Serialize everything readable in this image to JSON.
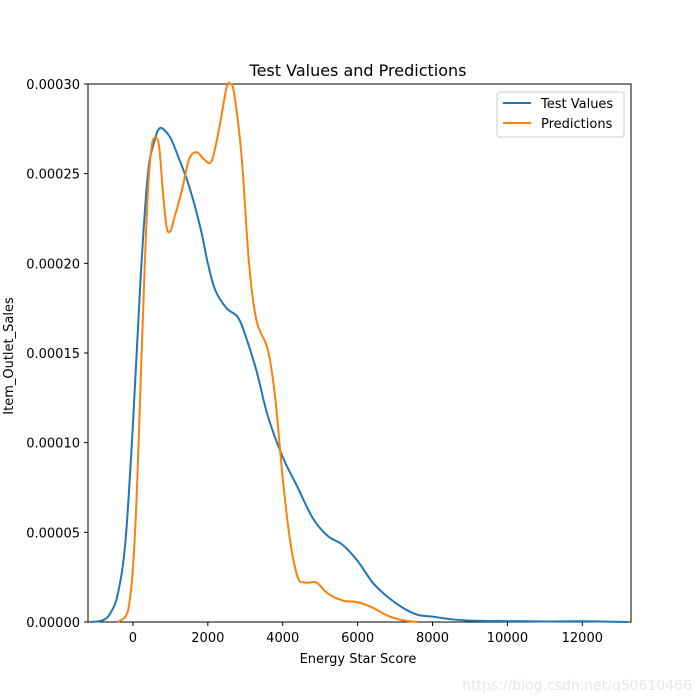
{
  "chart_data": {
    "type": "line",
    "title": "Test Values and Predictions",
    "xlabel": "Energy Star Score",
    "ylabel": "Item_Outlet_Sales",
    "xlim": [
      -1200,
      13300
    ],
    "ylim": [
      0,
      0.0003
    ],
    "xticks": [
      0,
      2000,
      4000,
      6000,
      8000,
      10000,
      12000
    ],
    "xtick_labels": [
      "0",
      "2000",
      "4000",
      "6000",
      "8000",
      "10000",
      "12000"
    ],
    "yticks": [
      0,
      5e-05,
      0.0001,
      0.00015,
      0.0002,
      0.00025,
      0.0003
    ],
    "ytick_labels": [
      "0.00000",
      "0.00005",
      "0.00010",
      "0.00015",
      "0.00020",
      "0.00025",
      "0.00030"
    ],
    "grid": false,
    "legend_position": "top-right",
    "series": [
      {
        "name": "Test Values",
        "color": "#1f77b4",
        "points": [
          [
            -1100,
            0.0
          ],
          [
            -800,
            1e-06
          ],
          [
            -600,
            5e-06
          ],
          [
            -400,
            1.6e-05
          ],
          [
            -200,
            4.5e-05
          ],
          [
            0,
            0.00011
          ],
          [
            200,
            0.00019
          ],
          [
            400,
            0.00025
          ],
          [
            600,
            0.00027
          ],
          [
            700,
            0.000275
          ],
          [
            800,
            0.000275
          ],
          [
            1000,
            0.00027
          ],
          [
            1200,
            0.00026
          ],
          [
            1500,
            0.000243
          ],
          [
            1800,
            0.00022
          ],
          [
            2000,
            0.0002
          ],
          [
            2200,
            0.000185
          ],
          [
            2500,
            0.000175
          ],
          [
            2800,
            0.00017
          ],
          [
            3000,
            0.00016
          ],
          [
            3300,
            0.00014
          ],
          [
            3600,
            0.000115
          ],
          [
            4000,
            9.2e-05
          ],
          [
            4400,
            7.5e-05
          ],
          [
            4800,
            5.8e-05
          ],
          [
            5200,
            4.8e-05
          ],
          [
            5600,
            4.3e-05
          ],
          [
            6000,
            3.4e-05
          ],
          [
            6400,
            2.2e-05
          ],
          [
            6800,
            1.4e-05
          ],
          [
            7200,
            8e-06
          ],
          [
            7600,
            4e-06
          ],
          [
            8000,
            3e-06
          ],
          [
            8500,
            1.5e-06
          ],
          [
            9000,
            8e-07
          ],
          [
            10000,
            5e-07
          ],
          [
            11000,
            3e-07
          ],
          [
            12000,
            4e-07
          ],
          [
            13200,
            0.0
          ]
        ]
      },
      {
        "name": "Predictions",
        "color": "#ff7f0e",
        "points": [
          [
            -400,
            0.0
          ],
          [
            -200,
            3e-06
          ],
          [
            -100,
            1e-05
          ],
          [
            0,
            3e-05
          ],
          [
            100,
            7e-05
          ],
          [
            200,
            0.00013
          ],
          [
            300,
            0.00019
          ],
          [
            400,
            0.00024
          ],
          [
            500,
            0.000265
          ],
          [
            600,
            0.00027
          ],
          [
            700,
            0.000265
          ],
          [
            800,
            0.00024
          ],
          [
            900,
            0.00022
          ],
          [
            1000,
            0.000218
          ],
          [
            1100,
            0.000225
          ],
          [
            1300,
            0.00024
          ],
          [
            1500,
            0.000258
          ],
          [
            1700,
            0.000262
          ],
          [
            1900,
            0.000258
          ],
          [
            2100,
            0.000257
          ],
          [
            2300,
            0.000275
          ],
          [
            2500,
            0.000298
          ],
          [
            2600,
            0.0003
          ],
          [
            2700,
            0.000295
          ],
          [
            2900,
            0.00026
          ],
          [
            3100,
            0.0002
          ],
          [
            3300,
            0.000168
          ],
          [
            3600,
            0.000152
          ],
          [
            3800,
            0.000125
          ],
          [
            4000,
            8e-05
          ],
          [
            4200,
            4.5e-05
          ],
          [
            4400,
            2.5e-05
          ],
          [
            4600,
            2.2e-05
          ],
          [
            4900,
            2.2e-05
          ],
          [
            5200,
            1.6e-05
          ],
          [
            5600,
            1.2e-05
          ],
          [
            6000,
            1.1e-05
          ],
          [
            6400,
            8e-06
          ],
          [
            6800,
            3.5e-06
          ],
          [
            7200,
            1e-06
          ],
          [
            7600,
            0.0
          ]
        ]
      }
    ]
  },
  "watermark": "https://blog.csdn.net/q50610466"
}
